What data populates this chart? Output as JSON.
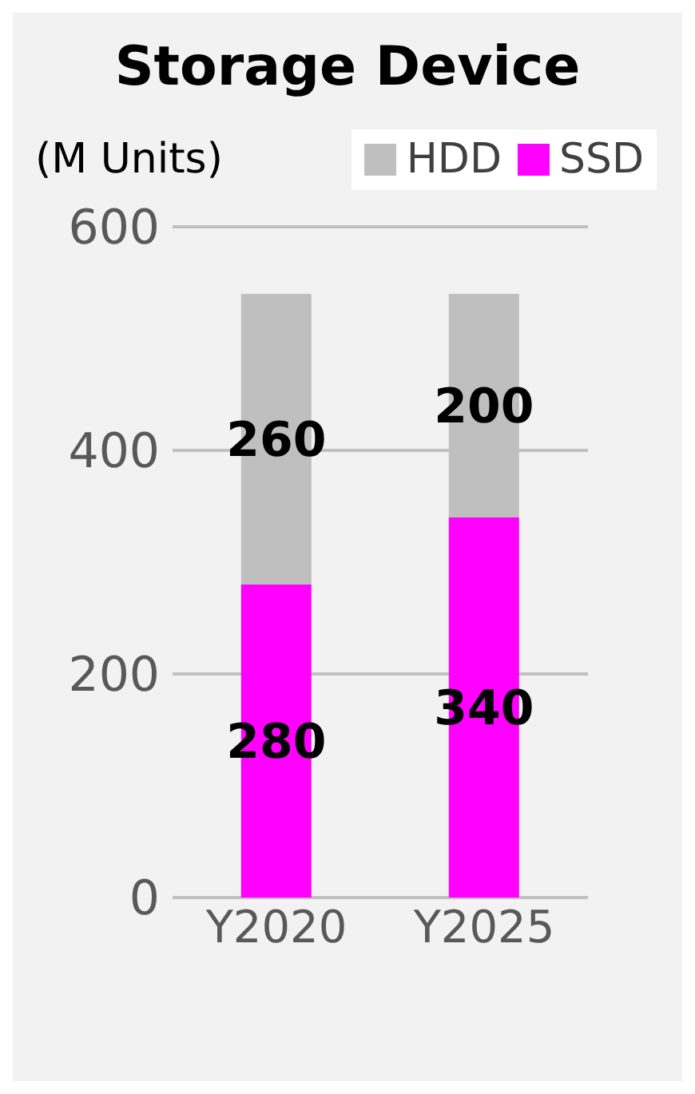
{
  "chart_data": {
    "type": "bar",
    "title": "Storage Device",
    "ylabel": "(M Units)",
    "categories": [
      "Y2020",
      "Y2025"
    ],
    "stacked": true,
    "series": [
      {
        "name": "SSD",
        "color": "#ff00ff",
        "values": [
          280,
          340
        ]
      },
      {
        "name": "HDD",
        "color": "#bfbfbf",
        "values": [
          260,
          200
        ]
      }
    ],
    "ylim": [
      0,
      600
    ],
    "yticks": [
      0,
      200,
      400,
      600
    ],
    "grid": "y",
    "legend": "top right",
    "data_labels": true
  }
}
